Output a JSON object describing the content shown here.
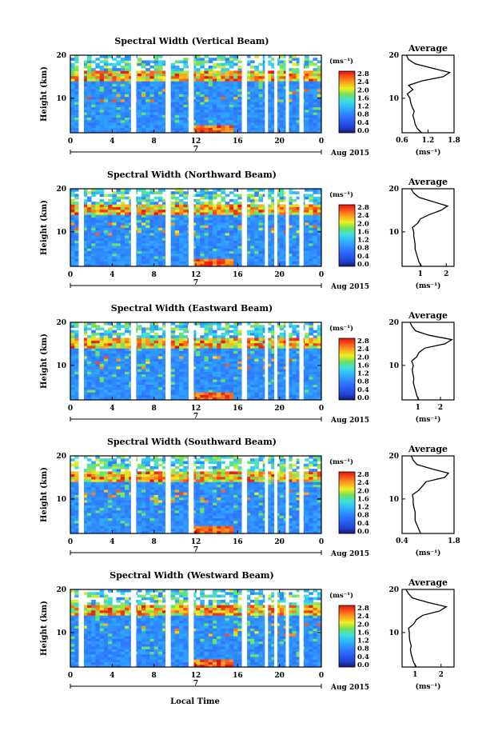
{
  "figure": {
    "xlabel": "Local Time",
    "date_label": "Aug 2015",
    "day_label": "7",
    "height_axis_label": "Height (km)",
    "avg_panel_title": "Average",
    "avg_unit_label": "(ms⁻¹)",
    "colorbar_unit": "(ms⁻¹)",
    "colorbar_ticks": [
      "2.8",
      "2.4",
      "2.0",
      "1.6",
      "1.2",
      "0.8",
      "0.4",
      "0.0"
    ],
    "x_ticks": [
      "0",
      "4",
      "8",
      "12",
      "16",
      "20",
      "0"
    ],
    "y_ticks": [
      "20",
      "10"
    ]
  },
  "chart_data": [
    {
      "type": "heatmap",
      "title": "Spectral Width (Vertical Beam)",
      "xlim": [
        0,
        24
      ],
      "ylim": [
        2,
        20
      ],
      "color_range": [
        0.0,
        2.8
      ],
      "data_gaps_hours": [
        [
          0.8,
          1.3
        ],
        [
          5.8,
          6.3
        ],
        [
          9.1,
          9.6
        ],
        [
          11.3,
          11.8
        ],
        [
          16.4,
          16.9
        ],
        [
          18.6,
          18.9
        ],
        [
          19.5,
          19.8
        ],
        [
          20.6,
          20.9
        ],
        [
          21.9,
          22.3
        ]
      ],
      "average_profile": {
        "xlim": [
          0.6,
          1.8
        ],
        "x_ticks": [
          "0.6",
          "1.2",
          "1.8"
        ],
        "height": [
          2,
          3,
          4,
          5,
          6,
          7,
          8,
          9,
          10,
          11,
          12,
          13,
          14,
          15,
          16,
          17,
          18,
          19,
          20
        ],
        "value": [
          1.05,
          0.95,
          0.9,
          0.88,
          0.85,
          0.88,
          0.83,
          0.8,
          0.78,
          0.72,
          0.85,
          0.75,
          1.05,
          1.55,
          1.7,
          1.3,
          0.9,
          0.75,
          0.7
        ]
      }
    },
    {
      "type": "heatmap",
      "title": "Spectral Width (Northward Beam)",
      "xlim": [
        0,
        24
      ],
      "ylim": [
        2,
        20
      ],
      "color_range": [
        0.0,
        2.8
      ],
      "data_gaps_hours": [
        [
          0.8,
          1.3
        ],
        [
          5.8,
          6.3
        ],
        [
          9.1,
          9.6
        ],
        [
          11.3,
          11.8
        ],
        [
          16.4,
          16.9
        ],
        [
          18.6,
          18.9
        ],
        [
          19.5,
          19.8
        ],
        [
          20.6,
          20.9
        ],
        [
          21.9,
          22.3
        ]
      ],
      "average_profile": {
        "xlim": [
          0.3,
          2.3
        ],
        "x_ticks": [
          "1",
          "2"
        ],
        "height": [
          2,
          3,
          4,
          5,
          6,
          7,
          8,
          9,
          10,
          11,
          12,
          13,
          14,
          15,
          16,
          17,
          18,
          19,
          20
        ],
        "value": [
          1.05,
          0.95,
          0.9,
          0.85,
          0.8,
          0.8,
          0.78,
          0.75,
          0.75,
          0.7,
          0.9,
          1.0,
          1.35,
          1.8,
          2.05,
          1.5,
          0.95,
          0.75,
          0.65
        ]
      }
    },
    {
      "type": "heatmap",
      "title": "Spectral Width (Eastward Beam)",
      "xlim": [
        0,
        24
      ],
      "ylim": [
        2,
        20
      ],
      "color_range": [
        0.0,
        2.8
      ],
      "data_gaps_hours": [
        [
          0.8,
          1.3
        ],
        [
          5.8,
          6.3
        ],
        [
          9.1,
          9.6
        ],
        [
          11.3,
          11.8
        ],
        [
          16.4,
          16.9
        ],
        [
          18.6,
          18.9
        ],
        [
          19.5,
          19.8
        ],
        [
          20.6,
          20.9
        ],
        [
          21.9,
          22.3
        ]
      ],
      "average_profile": {
        "xlim": [
          0.3,
          2.6
        ],
        "x_ticks": [
          "1",
          "2"
        ],
        "height": [
          2,
          3,
          4,
          5,
          6,
          7,
          8,
          9,
          10,
          11,
          12,
          13,
          14,
          15,
          16,
          17,
          18,
          19,
          20
        ],
        "value": [
          1.05,
          0.95,
          0.9,
          0.85,
          0.8,
          0.82,
          0.78,
          0.75,
          0.8,
          0.72,
          0.95,
          1.05,
          1.3,
          2.2,
          2.5,
          1.5,
          0.9,
          0.75,
          0.65
        ]
      }
    },
    {
      "type": "heatmap",
      "title": "Spectral Width (Southward Beam)",
      "xlim": [
        0,
        24
      ],
      "ylim": [
        2,
        20
      ],
      "color_range": [
        0.0,
        2.8
      ],
      "data_gaps_hours": [
        [
          0.8,
          1.3
        ],
        [
          5.8,
          6.3
        ],
        [
          9.1,
          9.6
        ],
        [
          11.3,
          11.8
        ],
        [
          16.4,
          16.9
        ],
        [
          18.6,
          18.9
        ],
        [
          19.5,
          19.8
        ],
        [
          20.6,
          20.9
        ],
        [
          21.9,
          22.3
        ]
      ],
      "average_profile": {
        "xlim": [
          0.4,
          1.8
        ],
        "x_ticks": [
          "0.4",
          "1.8"
        ],
        "height": [
          2,
          3,
          4,
          5,
          6,
          7,
          8,
          9,
          10,
          11,
          12,
          13,
          14,
          15,
          16,
          17,
          18,
          19,
          20
        ],
        "value": [
          0.9,
          0.85,
          0.8,
          0.75,
          0.75,
          0.75,
          0.72,
          0.7,
          0.7,
          0.68,
          0.85,
          0.95,
          1.05,
          1.55,
          1.65,
          1.2,
          0.8,
          0.7,
          0.65
        ]
      }
    },
    {
      "type": "heatmap",
      "title": "Spectral Width (Westward Beam)",
      "xlim": [
        0,
        24
      ],
      "ylim": [
        2,
        20
      ],
      "color_range": [
        0.0,
        2.8
      ],
      "data_gaps_hours": [
        [
          0.8,
          1.3
        ],
        [
          5.8,
          6.3
        ],
        [
          9.1,
          9.6
        ],
        [
          11.3,
          11.8
        ],
        [
          16.4,
          16.9
        ],
        [
          18.6,
          18.9
        ],
        [
          19.5,
          19.8
        ],
        [
          20.6,
          20.9
        ],
        [
          21.9,
          22.3
        ]
      ],
      "average_profile": {
        "xlim": [
          0.5,
          2.5
        ],
        "x_ticks": [
          "1",
          "2"
        ],
        "height": [
          2,
          3,
          4,
          5,
          6,
          7,
          8,
          9,
          10,
          11,
          12,
          13,
          14,
          15,
          16,
          17,
          18,
          19,
          20
        ],
        "value": [
          1.05,
          0.95,
          0.9,
          0.85,
          0.82,
          0.85,
          0.8,
          0.78,
          0.78,
          0.75,
          0.95,
          1.05,
          1.3,
          1.95,
          2.2,
          1.5,
          0.9,
          0.75,
          0.65
        ]
      }
    }
  ]
}
